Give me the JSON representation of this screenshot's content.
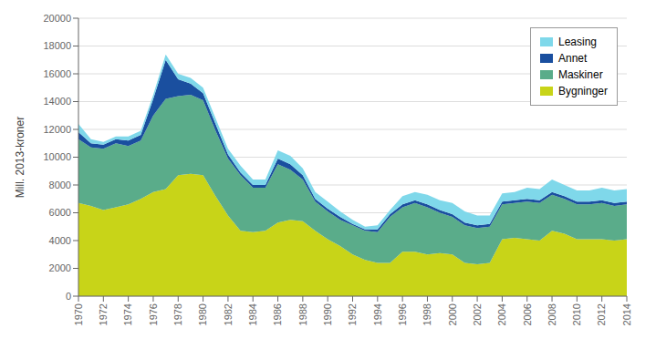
{
  "chart_data": {
    "type": "area",
    "stacked": true,
    "ylabel": "Mill. 2013-kroner",
    "x": [
      1970,
      1971,
      1972,
      1973,
      1974,
      1975,
      1976,
      1977,
      1978,
      1979,
      1980,
      1981,
      1982,
      1983,
      1984,
      1985,
      1986,
      1987,
      1988,
      1989,
      1990,
      1991,
      1992,
      1993,
      1994,
      1995,
      1996,
      1997,
      1998,
      1999,
      2000,
      2001,
      2002,
      2003,
      2004,
      2005,
      2006,
      2007,
      2008,
      2009,
      2010,
      2011,
      2012,
      2013,
      2014
    ],
    "xlim": [
      1970,
      2014
    ],
    "xticks": [
      1970,
      1972,
      1974,
      1976,
      1978,
      1980,
      1982,
      1984,
      1986,
      1988,
      1990,
      1992,
      1994,
      1996,
      1998,
      2000,
      2002,
      2004,
      2006,
      2008,
      2010,
      2012,
      2014
    ],
    "ylim": [
      0,
      20000
    ],
    "yticks": [
      0,
      2000,
      4000,
      6000,
      8000,
      10000,
      12000,
      14000,
      16000,
      18000,
      20000
    ],
    "grid": true,
    "legend": "upper right",
    "series": [
      {
        "name": "Bygninger",
        "color": "#c8d418",
        "values": [
          6700,
          6500,
          6200,
          6400,
          6600,
          7000,
          7500,
          7700,
          8700,
          8800,
          8700,
          7200,
          5800,
          4700,
          4600,
          4700,
          5300,
          5500,
          5400,
          4700,
          4100,
          3600,
          3000,
          2600,
          2400,
          2400,
          3200,
          3200,
          3000,
          3100,
          3000,
          2400,
          2300,
          2400,
          4100,
          4200,
          4100,
          4000,
          4700,
          4500,
          4100,
          4100,
          4100,
          4000,
          4100
        ]
      },
      {
        "name": "Maskiner",
        "color": "#5aac8a",
        "values": [
          4600,
          4200,
          4400,
          4600,
          4200,
          4200,
          5500,
          6500,
          5700,
          5700,
          5400,
          4700,
          4100,
          4000,
          3200,
          3100,
          4200,
          3600,
          3000,
          2100,
          2000,
          1900,
          2100,
          2100,
          2200,
          3300,
          3200,
          3500,
          3400,
          2900,
          2700,
          2700,
          2600,
          2600,
          2500,
          2500,
          2700,
          2700,
          2600,
          2500,
          2500,
          2500,
          2600,
          2500,
          2500
        ]
      },
      {
        "name": "Annet",
        "color": "#1a4f9f",
        "values": [
          500,
          300,
          300,
          300,
          400,
          400,
          1200,
          2800,
          1200,
          800,
          500,
          500,
          300,
          200,
          200,
          200,
          400,
          400,
          300,
          200,
          200,
          200,
          100,
          100,
          200,
          200,
          200,
          200,
          200,
          200,
          200,
          200,
          200,
          200,
          200,
          200,
          200,
          200,
          200,
          200,
          200,
          200,
          200,
          200,
          200
        ]
      },
      {
        "name": "Leasing",
        "color": "#7fd8ea",
        "values": [
          600,
          300,
          200,
          200,
          300,
          300,
          300,
          400,
          400,
          400,
          400,
          400,
          400,
          500,
          400,
          400,
          600,
          600,
          500,
          500,
          500,
          400,
          300,
          200,
          300,
          300,
          600,
          600,
          700,
          700,
          800,
          800,
          700,
          600,
          600,
          600,
          800,
          800,
          900,
          800,
          800,
          800,
          900,
          900,
          900
        ]
      }
    ]
  }
}
